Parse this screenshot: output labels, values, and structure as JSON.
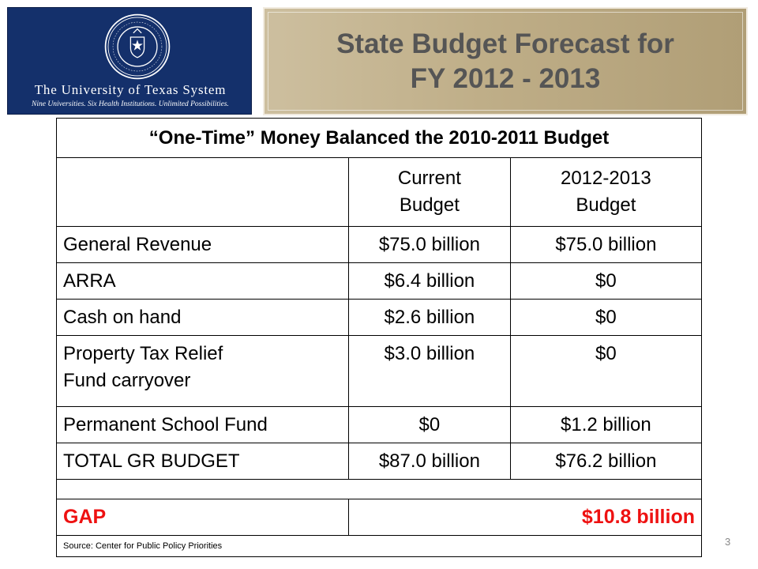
{
  "logo": {
    "name": "The University of Texas System",
    "tagline": "Nine Universities. Six Health Institutions. Unlimited Possibilities."
  },
  "title": {
    "line1": "State Budget Forecast for",
    "line2": "FY 2012 - 2013"
  },
  "table": {
    "caption": "“One-Time” Money Balanced the 2010-2011 Budget",
    "headers": {
      "current_line1": "Current",
      "current_line2": "Budget",
      "next_line1": "2012-2013",
      "next_line2": "Budget"
    },
    "rows": [
      {
        "label": "General Revenue",
        "current": "$75.0 billion",
        "next": "$75.0 billion"
      },
      {
        "label": "ARRA",
        "current": "$6.4 billion",
        "next": "$0"
      },
      {
        "label": "Cash on hand",
        "current": "$2.6 billion",
        "next": "$0"
      },
      {
        "label_line1": "Property Tax Relief",
        "label_line2": "Fund carryover",
        "current": "$3.0 billion",
        "next": "$0"
      },
      {
        "label": "Permanent School Fund",
        "current": "$0",
        "next": "$1.2 billion"
      },
      {
        "label": "TOTAL GR BUDGET",
        "current": "$87.0 billion",
        "next": "$76.2 billion"
      }
    ],
    "gap": {
      "label": "GAP",
      "value": "$10.8 billion"
    },
    "source": "Source: Center for Public Policy Priorities"
  },
  "page_number": "3",
  "colors": {
    "logo_background": "#14306b",
    "title_background": "#bfae88",
    "title_text": "#555555",
    "gap_text": "#ee1111"
  }
}
